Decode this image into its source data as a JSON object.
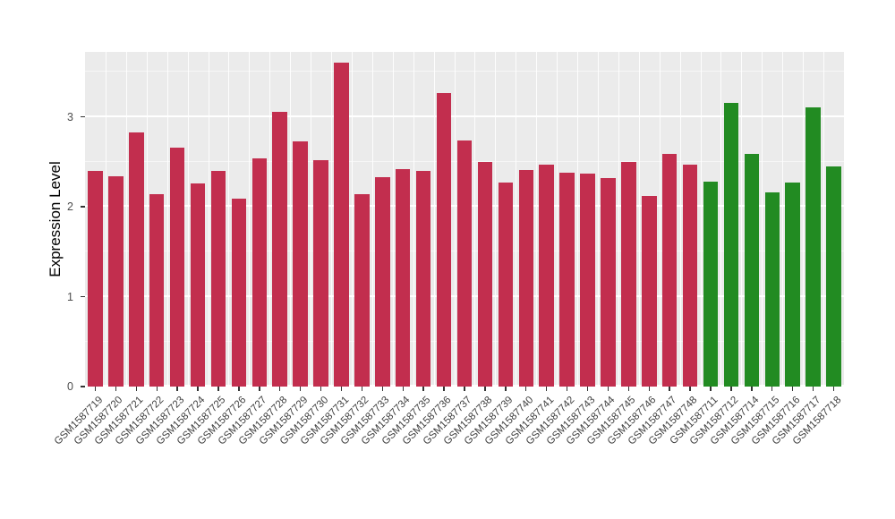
{
  "chart_data": {
    "type": "bar",
    "title": "",
    "xlabel": "",
    "ylabel": "Expression Level",
    "ylim": [
      0,
      3.722
    ],
    "yticks": [
      0,
      1,
      2,
      3
    ],
    "yticks_minor": [
      0.5,
      1.5,
      2.5,
      3.5
    ],
    "grid": true,
    "legend_position": "none",
    "panel_background": "#EBEBEB",
    "grid_color": "#FFFFFF",
    "axis_text_color": "#4D4D4D",
    "tick_mark_color": "#333333",
    "group_colors": {
      "red": "#C22E4E",
      "green": "#228B22"
    },
    "categories": [
      "GSM1587719",
      "GSM1587720",
      "GSM1587721",
      "GSM1587722",
      "GSM1587723",
      "GSM1587724",
      "GSM1587725",
      "GSM1587726",
      "GSM1587727",
      "GSM1587728",
      "GSM1587729",
      "GSM1587730",
      "GSM1587731",
      "GSM1587732",
      "GSM1587733",
      "GSM1587734",
      "GSM1587735",
      "GSM1587736",
      "GSM1587737",
      "GSM1587738",
      "GSM1587739",
      "GSM1587740",
      "GSM1587741",
      "GSM1587742",
      "GSM1587743",
      "GSM1587744",
      "GSM1587745",
      "GSM1587746",
      "GSM1587747",
      "GSM1587748",
      "GSM1587711",
      "GSM1587712",
      "GSM1587714",
      "GSM1587715",
      "GSM1587716",
      "GSM1587717",
      "GSM1587718"
    ],
    "values": [
      2.4,
      2.34,
      2.83,
      2.14,
      2.66,
      2.26,
      2.4,
      2.09,
      2.54,
      3.06,
      2.73,
      2.52,
      3.6,
      2.14,
      2.33,
      2.42,
      2.4,
      3.26,
      2.74,
      2.5,
      2.27,
      2.41,
      2.47,
      2.38,
      2.37,
      2.32,
      2.5,
      2.12,
      2.59,
      2.47,
      2.28,
      3.15,
      2.59,
      2.16,
      2.27,
      3.11,
      2.45
    ],
    "groups": [
      "red",
      "red",
      "red",
      "red",
      "red",
      "red",
      "red",
      "red",
      "red",
      "red",
      "red",
      "red",
      "red",
      "red",
      "red",
      "red",
      "red",
      "red",
      "red",
      "red",
      "red",
      "red",
      "red",
      "red",
      "red",
      "red",
      "red",
      "red",
      "red",
      "red",
      "green",
      "green",
      "green",
      "green",
      "green",
      "green",
      "green"
    ]
  }
}
